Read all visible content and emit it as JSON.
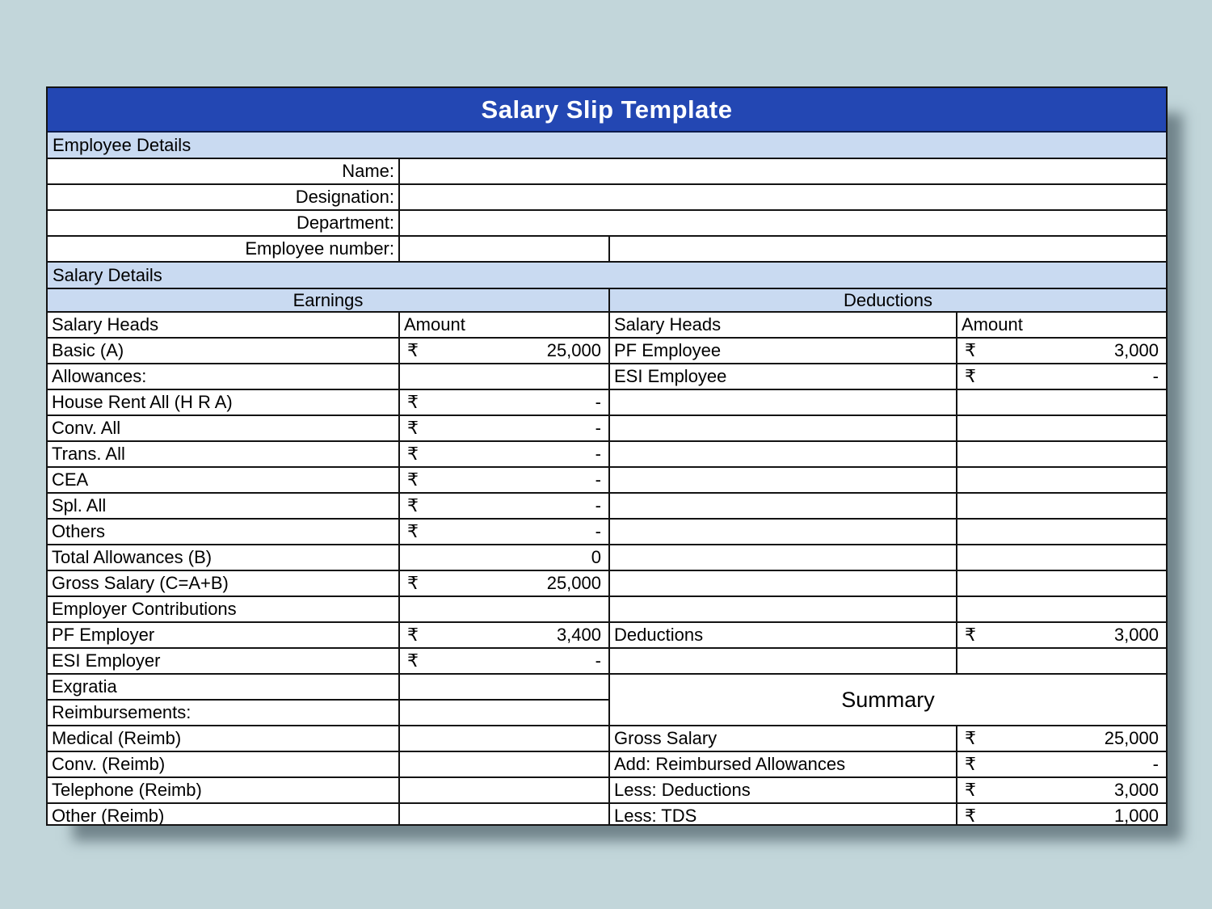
{
  "title": "Salary Slip Template",
  "colors": {
    "header_background": "#2347b3",
    "section_band_background": "#c9daf1",
    "page_background": "#c2d6da",
    "grid_line": "#131313",
    "title_text": "#ffffff"
  },
  "employee_details": {
    "section_label": "Employee Details",
    "name_label": "Name:",
    "name_value": "",
    "designation_label": "Designation:",
    "designation_value": "",
    "department_label": "Department:",
    "department_value": "",
    "employee_number_label": "Employee number:",
    "employee_number_value_1": "",
    "employee_number_value_2": ""
  },
  "salary_details_label": "Salary Details",
  "earnings": {
    "header": "Earnings",
    "col_head": "Salary Heads",
    "col_amount": "Amount",
    "rows": [
      {
        "head": "Basic (A)",
        "cur": "₹",
        "amt": "25,000"
      },
      {
        "head": "Allowances:",
        "cur": "",
        "amt": ""
      },
      {
        "head": "House Rent All (H R A)",
        "cur": "₹",
        "amt": "-"
      },
      {
        "head": "Conv. All",
        "cur": "₹",
        "amt": "-"
      },
      {
        "head": "Trans. All",
        "cur": "₹",
        "amt": "-"
      },
      {
        "head": "CEA",
        "cur": "₹",
        "amt": "-"
      },
      {
        "head": "Spl. All",
        "cur": "₹",
        "amt": "-"
      },
      {
        "head": "Others",
        "cur": "₹",
        "amt": "-"
      },
      {
        "head": "Total Allowances (B)",
        "cur": "",
        "amt": "0"
      },
      {
        "head": "Gross Salary (C=A+B)",
        "cur": "₹",
        "amt": "25,000"
      },
      {
        "head": "Employer Contributions",
        "cur": "",
        "amt": ""
      },
      {
        "head": "PF Employer",
        "cur": "₹",
        "amt": "3,400"
      },
      {
        "head": "ESI Employer",
        "cur": "₹",
        "amt": "-"
      },
      {
        "head": "Exgratia",
        "cur": "",
        "amt": ""
      },
      {
        "head": "Reimbursements:",
        "cur": "",
        "amt": ""
      },
      {
        "head": "Medical (Reimb)",
        "cur": "",
        "amt": ""
      },
      {
        "head": "Conv. (Reimb)",
        "cur": "",
        "amt": ""
      },
      {
        "head": "Telephone (Reimb)",
        "cur": "",
        "amt": ""
      },
      {
        "head": "Other (Reimb)",
        "cur": "",
        "amt": ""
      }
    ]
  },
  "deductions": {
    "header": "Deductions",
    "col_head": "Salary Heads",
    "col_amount": "Amount",
    "rows_top": [
      {
        "head": "PF Employee",
        "cur": "₹",
        "amt": "3,000"
      },
      {
        "head": "ESI Employee",
        "cur": "₹",
        "amt": "-"
      },
      {
        "head": "",
        "cur": "",
        "amt": ""
      },
      {
        "head": "",
        "cur": "",
        "amt": ""
      },
      {
        "head": "",
        "cur": "",
        "amt": ""
      },
      {
        "head": "",
        "cur": "",
        "amt": ""
      },
      {
        "head": "",
        "cur": "",
        "amt": ""
      },
      {
        "head": "",
        "cur": "",
        "amt": ""
      },
      {
        "head": "",
        "cur": "",
        "amt": ""
      },
      {
        "head": "",
        "cur": "",
        "amt": ""
      },
      {
        "head": "",
        "cur": "",
        "amt": ""
      },
      {
        "head": "Deductions",
        "cur": "₹",
        "amt": "3,000"
      },
      {
        "head": "",
        "cur": "",
        "amt": ""
      }
    ]
  },
  "summary": {
    "header": "Summary",
    "rows": [
      {
        "head": "Gross Salary",
        "cur": "₹",
        "amt": "25,000"
      },
      {
        "head": "Add: Reimbursed Allowances",
        "cur": "₹",
        "amt": "-"
      },
      {
        "head": "Less: Deductions",
        "cur": "₹",
        "amt": "3,000"
      },
      {
        "head": "Less: TDS",
        "cur": "₹",
        "amt": "1,000"
      }
    ]
  }
}
